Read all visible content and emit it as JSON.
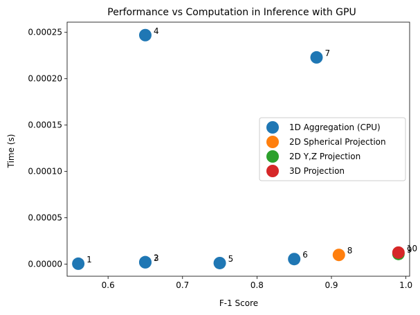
{
  "chart_data": {
    "type": "scatter",
    "title": "Performance vs Computation in Inference with GPU",
    "xlabel": "F-1 Score",
    "ylabel": "Time (s)",
    "xlim": [
      0.545,
      1.005
    ],
    "ylim": [
      -1.3e-05,
      0.000261
    ],
    "xticks": [
      0.6,
      0.7,
      0.8,
      0.9,
      1.0
    ],
    "xtick_labels": [
      "0.6",
      "0.7",
      "0.8",
      "0.9",
      "1.0"
    ],
    "yticks": [
      0.0,
      5e-05,
      0.0001,
      0.00015,
      0.0002,
      0.00025
    ],
    "ytick_labels": [
      "0.00000",
      "0.00005",
      "0.00010",
      "0.00015",
      "0.00020",
      "0.00025"
    ],
    "grid": false,
    "legend_position": "center-right",
    "series": [
      {
        "name": "1D Aggregation (CPU)",
        "color": "#1f77b4",
        "points": [
          {
            "label": "1",
            "x": 0.56,
            "y": 5e-07
          },
          {
            "label": "2",
            "x": 0.65,
            "y": 2.2e-06
          },
          {
            "label": "3",
            "x": 0.65,
            "y": 2e-06
          },
          {
            "label": "4",
            "x": 0.65,
            "y": 0.000247
          },
          {
            "label": "5",
            "x": 0.75,
            "y": 1.2e-06
          },
          {
            "label": "6",
            "x": 0.85,
            "y": 5.5e-06
          },
          {
            "label": "7",
            "x": 0.88,
            "y": 0.000223
          }
        ]
      },
      {
        "name": "2D Spherical Projection",
        "color": "#ff7f0e",
        "points": [
          {
            "label": "8",
            "x": 0.91,
            "y": 1e-05
          }
        ]
      },
      {
        "name": "2D Y,Z Projection",
        "color": "#2ca02c",
        "points": [
          {
            "label": "9",
            "x": 0.99,
            "y": 1.1e-05
          }
        ]
      },
      {
        "name": "3D Projection",
        "color": "#d62728",
        "points": [
          {
            "label": "10",
            "x": 0.99,
            "y": 1.25e-05
          }
        ]
      }
    ]
  }
}
